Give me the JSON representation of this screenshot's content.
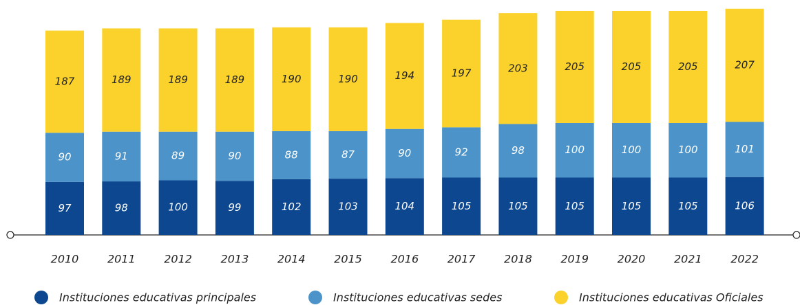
{
  "chart_data": {
    "type": "stacked_bar",
    "categories": [
      "2010",
      "2011",
      "2012",
      "2013",
      "2014",
      "2015",
      "2016",
      "2017",
      "2018",
      "2019",
      "2020",
      "2021",
      "2022"
    ],
    "series": [
      {
        "name": "Instituciones educativas principales",
        "color": "#0d4790",
        "label_color": "#ffffff",
        "values": [
          97,
          98,
          100,
          99,
          102,
          103,
          104,
          105,
          105,
          105,
          105,
          105,
          106
        ]
      },
      {
        "name": "Instituciones educativas sedes",
        "color": "#4b93c8",
        "label_color": "#ffffff",
        "values": [
          90,
          91,
          89,
          90,
          88,
          87,
          90,
          92,
          98,
          100,
          100,
          100,
          101
        ]
      },
      {
        "name": "Instituciones educativas Oficiales",
        "color": "#fbd22c",
        "label_color": "#222222",
        "values": [
          187,
          189,
          189,
          189,
          190,
          190,
          194,
          197,
          203,
          205,
          205,
          205,
          207
        ]
      }
    ],
    "ylim": [
      0,
      420
    ]
  }
}
